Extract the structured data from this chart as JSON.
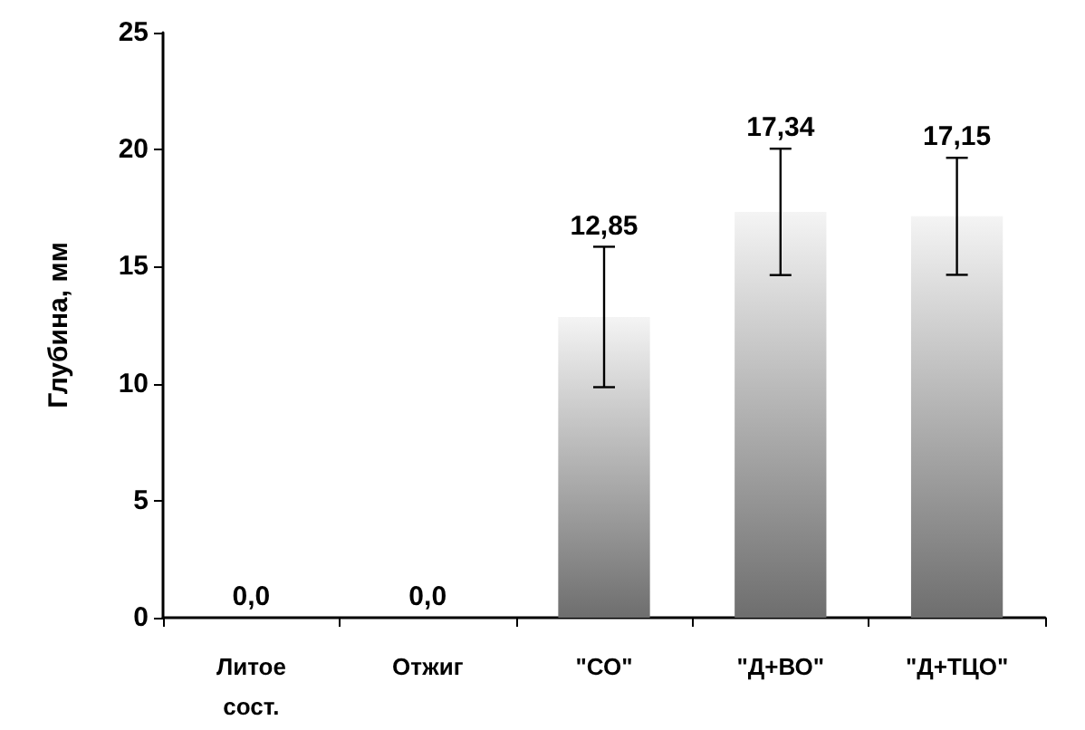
{
  "chart_data": {
    "type": "bar",
    "ylabel": "Глубина, мм",
    "categories": [
      "Литое\nсост.",
      "Отжиг",
      "\"СО\"",
      "\"Д+ВО\"",
      "\"Д+ТЦО\""
    ],
    "values": [
      0,
      0,
      12.85,
      17.34,
      17.15
    ],
    "value_labels": [
      "0,0",
      "0,0",
      "12,85",
      "17,34",
      "17,15"
    ],
    "errors": [
      null,
      null,
      3,
      2.7,
      2.5
    ],
    "color": "#6e6e6e",
    "ylim": [
      0,
      25
    ],
    "yticks": [
      0,
      5,
      10,
      15,
      20,
      25
    ],
    "grid": false
  }
}
